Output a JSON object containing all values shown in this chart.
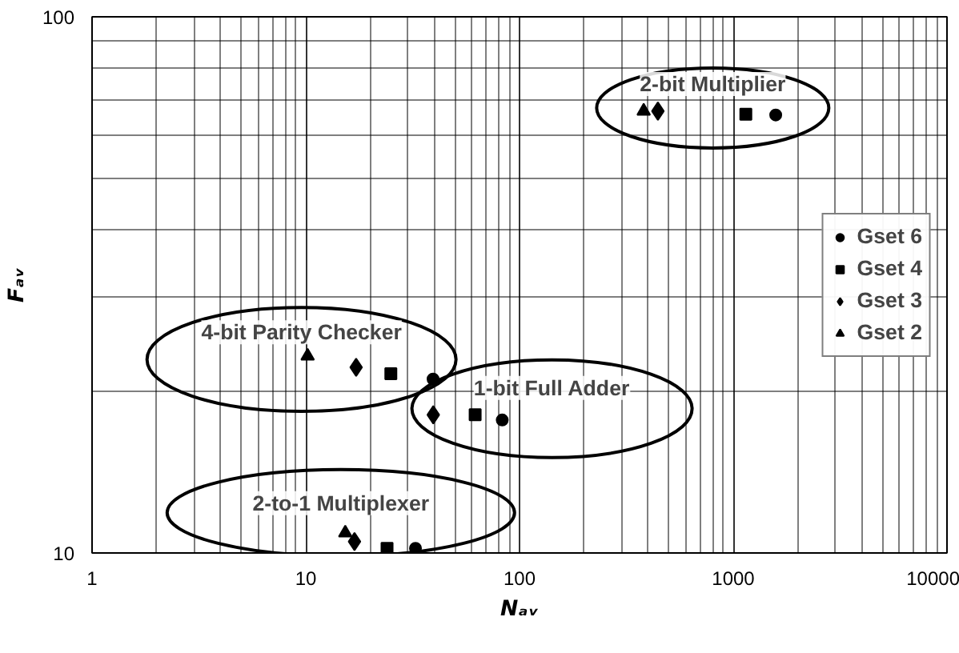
{
  "chart_data": {
    "type": "scatter",
    "xlabel": "Nₐᵥ",
    "ylabel": "Fₐᵥ",
    "log": "xy",
    "grid": true,
    "legend": "right",
    "xlim": [
      1,
      10000
    ],
    "ylim": [
      10,
      100
    ],
    "xticks": [
      1,
      10,
      100,
      1000,
      10000
    ],
    "yticks": [
      10,
      100
    ],
    "series": [
      {
        "name": "Gset 6",
        "color": "#000000",
        "marker": "circle",
        "x": [
          1580,
          83,
          39.4,
          32.6
        ],
        "values": [
          65.6,
          17.7,
          21.1,
          10.2
        ]
      },
      {
        "name": "Gset 4",
        "color": "#000000",
        "marker": "square",
        "x": [
          1145,
          62,
          25,
          24
        ],
        "values": [
          65.8,
          18.1,
          21.6,
          10.2
        ]
      },
      {
        "name": "Gset 3",
        "color": "#000000",
        "marker": "diamond",
        "x": [
          444,
          39.5,
          17.2,
          16.9
        ],
        "values": [
          66.7,
          18.1,
          22.2,
          10.5
        ]
      },
      {
        "name": "Gset 2",
        "color": "#000000",
        "marker": "triangle",
        "x": [
          381,
          10.2,
          15.3
        ],
        "values": [
          66.7,
          23.3,
          10.9
        ]
      }
    ],
    "annotations": [
      "2-bit Multiplier",
      "4-bit Parity Checker",
      "1-bit Full Adder",
      "2-to-1 Multiplexer"
    ]
  }
}
